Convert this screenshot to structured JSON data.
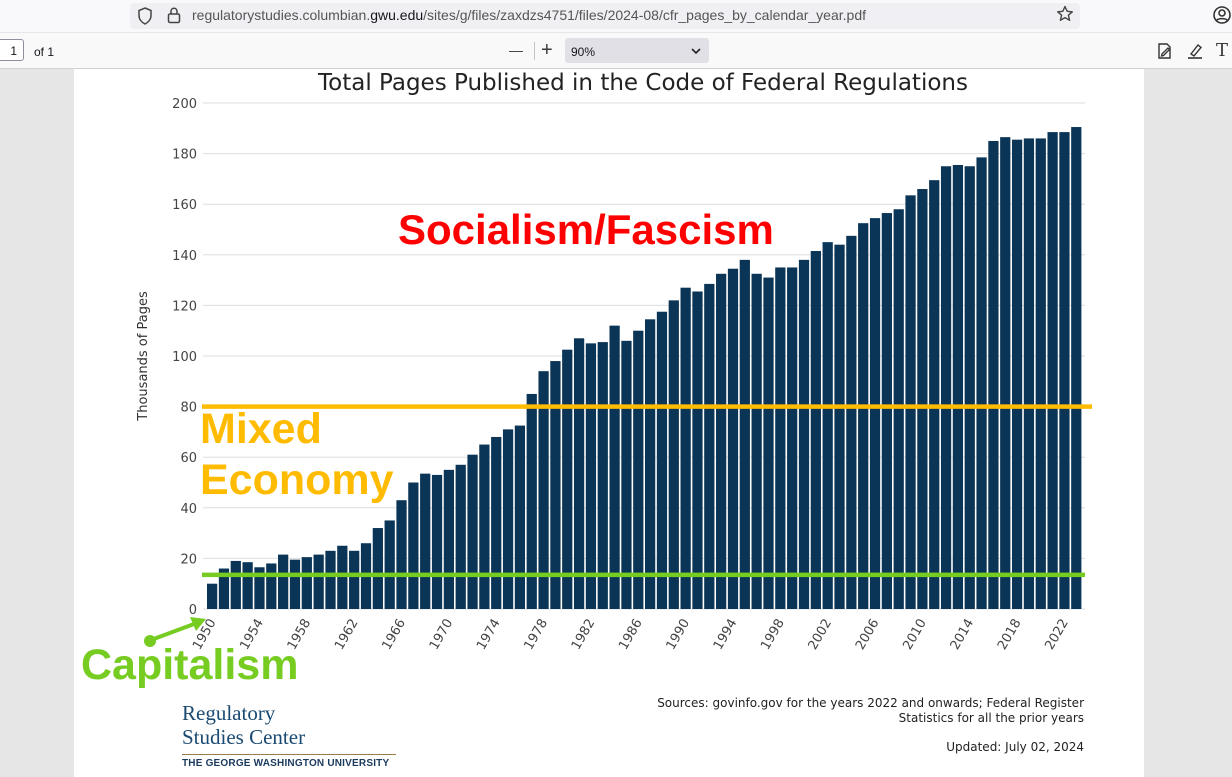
{
  "browser": {
    "url_prefix": "regulatorystudies.columbian.",
    "url_host": "gwu.edu",
    "url_path": "/sites/g/files/zaxdzs4751/files/2024-08/cfr_pages_by_calendar_year.pdf",
    "icons": [
      "shield-icon",
      "lock-icon",
      "star-icon",
      "account-icon"
    ]
  },
  "pdf_toolbar": {
    "page_number": "1",
    "page_total": "of 1",
    "zoom_out_label": "—",
    "zoom_in_label": "+",
    "zoom_value": "90%",
    "icons": [
      "chevron-down-icon",
      "sign-icon",
      "highlight-icon",
      "text-icon"
    ],
    "text_tool_label": "T"
  },
  "chart_data": {
    "type": "bar",
    "title": "Total Pages Published in the Code of Federal Regulations",
    "xlabel": "",
    "ylabel": "Thousands of Pages",
    "ylim": [
      0,
      200
    ],
    "yticks": [
      0,
      20,
      40,
      60,
      80,
      100,
      120,
      140,
      160,
      180,
      200
    ],
    "xtick_labels": [
      "1950",
      "1954",
      "1958",
      "1962",
      "1966",
      "1970",
      "1974",
      "1978",
      "1982",
      "1986",
      "1990",
      "1994",
      "1998",
      "2002",
      "2006",
      "2010",
      "2014",
      "2018",
      "2022"
    ],
    "grid": true,
    "bar_color": "#0b3556",
    "x": [
      1950,
      1951,
      1952,
      1953,
      1954,
      1955,
      1956,
      1957,
      1958,
      1959,
      1960,
      1961,
      1962,
      1963,
      1964,
      1965,
      1966,
      1967,
      1968,
      1969,
      1970,
      1971,
      1972,
      1973,
      1974,
      1975,
      1976,
      1977,
      1978,
      1979,
      1980,
      1981,
      1982,
      1983,
      1984,
      1985,
      1986,
      1987,
      1988,
      1989,
      1990,
      1991,
      1992,
      1993,
      1994,
      1995,
      1996,
      1997,
      1998,
      1999,
      2000,
      2001,
      2002,
      2003,
      2004,
      2005,
      2006,
      2007,
      2008,
      2009,
      2010,
      2011,
      2012,
      2013,
      2014,
      2015,
      2016,
      2017,
      2018,
      2019,
      2020,
      2021,
      2022,
      2023
    ],
    "values": [
      10,
      16,
      19,
      18.5,
      16.5,
      18,
      21.5,
      19.5,
      20.5,
      21.5,
      23,
      25,
      23,
      26,
      32,
      35,
      43,
      50,
      53.5,
      53,
      55,
      57,
      61,
      65,
      68,
      71,
      72.5,
      85,
      94,
      98,
      102.5,
      107,
      105,
      105.5,
      112,
      106,
      110,
      114.5,
      117.5,
      122,
      127,
      125.5,
      128.5,
      132.5,
      134.5,
      138,
      132.5,
      131,
      135,
      135,
      138,
      141.5,
      145,
      144,
      147.5,
      152.5,
      154.5,
      156.5,
      158,
      163.5,
      166,
      169.5,
      175,
      175.5,
      175,
      178.5,
      185,
      186.5,
      185.5,
      186,
      186,
      188.5,
      188.5,
      190.5
    ],
    "sources": [
      "Sources: govinfo.gov for the years 2022 and onwards; Federal Register",
      "Statistics for all the prior years"
    ],
    "updated": "Updated: July 02, 2024",
    "annotations": {
      "upper_label": "Socialism/Fascism",
      "middle_label": [
        "Mixed",
        "Economy"
      ],
      "lower_label": "Capitalism",
      "upper_line_value": 80,
      "lower_line_value": 13.5,
      "upper_label_color": "#ff0000",
      "middle_line_color": "#ffbb00",
      "lower_line_color": "#77cc22"
    }
  },
  "logo": {
    "line1": "Regulatory",
    "line2": "Studies Center",
    "line3": "THE GEORGE WASHINGTON UNIVERSITY"
  }
}
